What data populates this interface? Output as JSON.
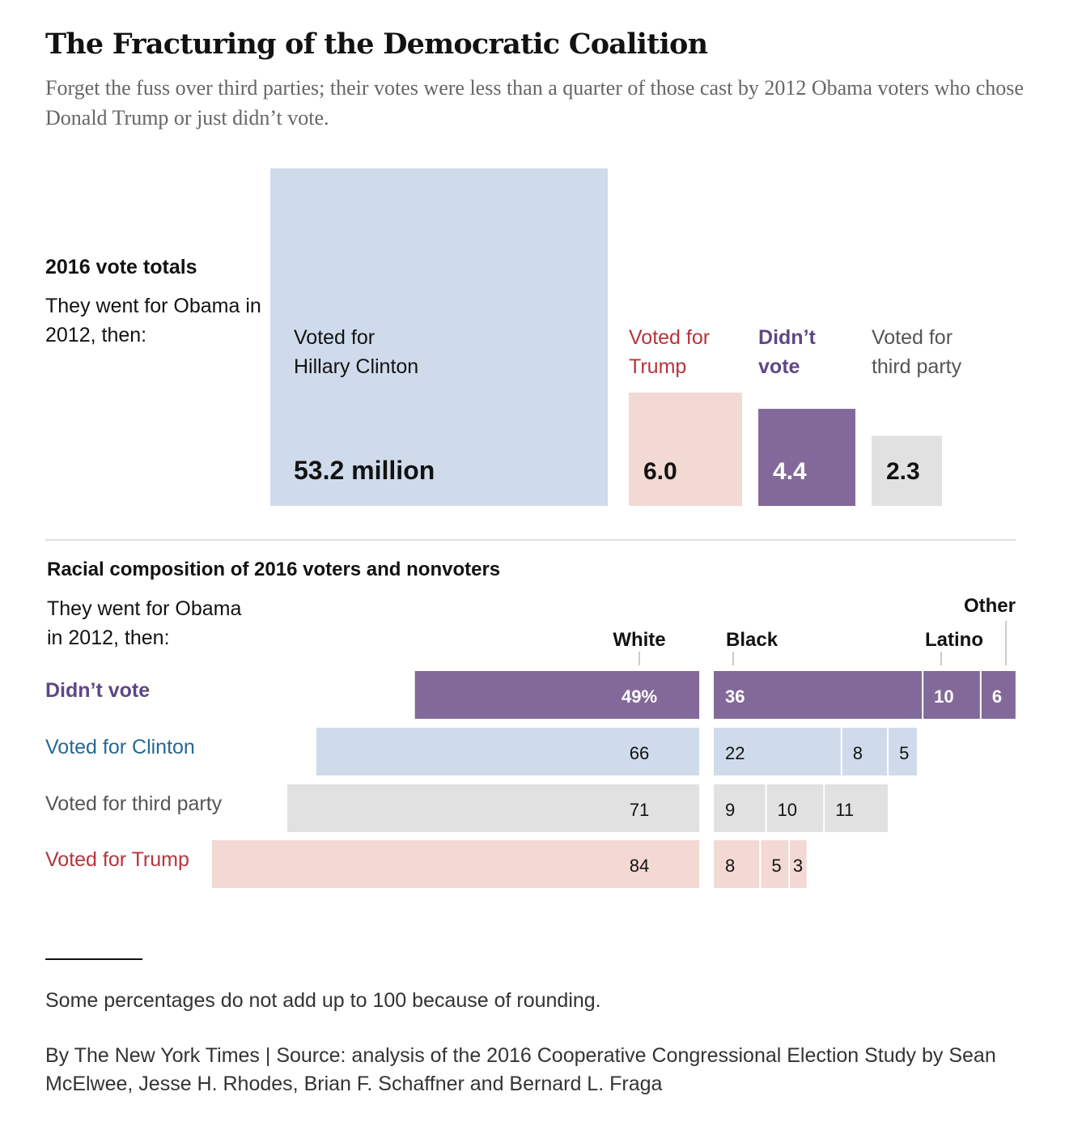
{
  "title": "The Fracturing of the Democratic Coalition",
  "subtitle": "Forget the fuss over third parties; their votes were less than a quarter of those cast by 2012 Obama voters who chose Donald Trump or just didn’t vote.",
  "colors": {
    "clinton": "#cfdbeb",
    "trump": "#f3d9d3",
    "didnt_vote": "#83699a",
    "third_party": "#e1e1e1",
    "clinton_text": "#246a93",
    "trump_text": "#b5343d",
    "didnt_vote_text": "#5e4884",
    "third_party_text": "#555555"
  },
  "totals": {
    "heading": "2016 vote totals",
    "lead": "They went for Obama in 2012, then:",
    "items": [
      {
        "key": "clinton",
        "label_line1": "Voted for",
        "label_line2": "Hillary Clinton",
        "value_label": "53.2 million"
      },
      {
        "key": "trump",
        "label_line1": "Voted for",
        "label_line2": "Trump",
        "value_label": "6.0"
      },
      {
        "key": "didnt_vote",
        "label_line1": "Didn’t",
        "label_line2": "vote",
        "value_label": "4.4"
      },
      {
        "key": "third_party",
        "label_line1": "Voted for",
        "label_line2": "third party",
        "value_label": "2.3"
      }
    ]
  },
  "race": {
    "heading": "Racial composition of 2016 voters and nonvoters",
    "lead_line1": "They went for Obama",
    "lead_line2": "in 2012, then:",
    "column_labels": {
      "white": "White",
      "black": "Black",
      "latino": "Latino",
      "other": "Other"
    },
    "rows": [
      {
        "key": "didnt_vote",
        "label": "Didn’t vote",
        "white_label": "49%",
        "black_label": "36",
        "latino_label": "10",
        "other_label": "6"
      },
      {
        "key": "clinton",
        "label": "Voted for Clinton",
        "white_label": "66",
        "black_label": "22",
        "latino_label": "8",
        "other_label": "5"
      },
      {
        "key": "third_party",
        "label": "Voted for third party",
        "white_label": "71",
        "black_label": "9",
        "latino_label": "10",
        "other_label": "11"
      },
      {
        "key": "trump",
        "label": "Voted for Trump",
        "white_label": "84",
        "black_label": "8",
        "latino_label": "5",
        "other_label": "3"
      }
    ]
  },
  "chart_data": [
    {
      "type": "bar",
      "title": "2016 vote totals",
      "subtitle": "They went for Obama in 2012, then:",
      "unit": "million votes",
      "categories": [
        "Voted for Hillary Clinton",
        "Voted for Trump",
        "Didn’t vote",
        "Voted for third party"
      ],
      "values": [
        53.2,
        6.0,
        4.4,
        2.3
      ]
    },
    {
      "type": "bar",
      "title": "Racial composition of 2016 voters and nonvoters",
      "stacked": true,
      "unit": "percent",
      "categories": [
        "Didn’t vote",
        "Voted for Clinton",
        "Voted for third party",
        "Voted for Trump"
      ],
      "series": [
        {
          "name": "White",
          "values": [
            49,
            66,
            71,
            84
          ]
        },
        {
          "name": "Black",
          "values": [
            36,
            22,
            9,
            8
          ]
        },
        {
          "name": "Latino",
          "values": [
            10,
            8,
            10,
            5
          ]
        },
        {
          "name": "Other",
          "values": [
            6,
            5,
            11,
            3
          ]
        }
      ]
    }
  ],
  "footnote": "Some percentages do not add up to 100 because of rounding.",
  "credit": "By The New York Times | Source: analysis of the 2016 Cooperative Congressional Election Study by Sean McElwee, Jesse H. Rhodes, Brian F. Schaffner and Bernard L. Fraga"
}
